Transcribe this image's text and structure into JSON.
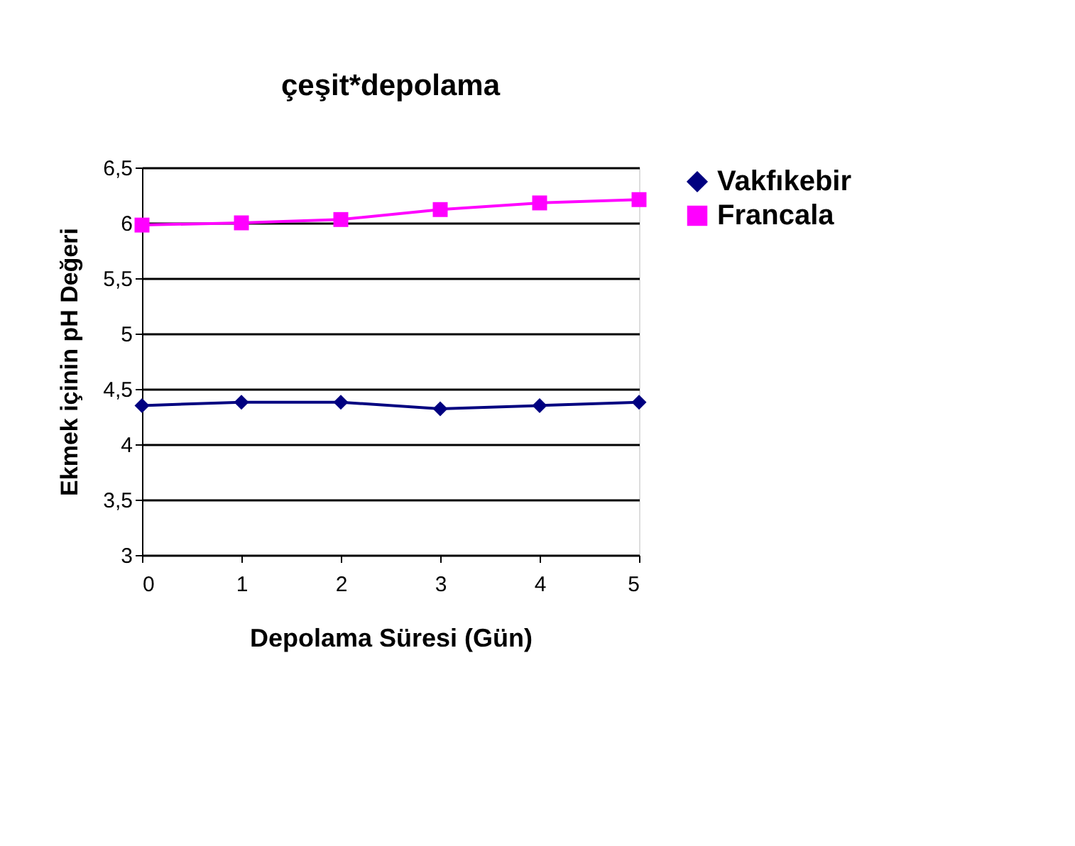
{
  "chart_data": {
    "type": "line",
    "title": "çeşit*depolama",
    "xlabel": "Depolama Süresi (Gün)",
    "ylabel": "Ekmek içinin  pH Değeri",
    "categories": [
      "0",
      "1",
      "2",
      "3",
      "4",
      "5"
    ],
    "series": [
      {
        "name": "Vakfıkebir",
        "color": "#000080",
        "marker": "diamond",
        "values": [
          4.35,
          4.38,
          4.38,
          4.32,
          4.35,
          4.38
        ]
      },
      {
        "name": "Francala",
        "color": "#ff00ff",
        "marker": "square",
        "values": [
          5.98,
          6.0,
          6.03,
          6.12,
          6.18,
          6.21
        ]
      }
    ],
    "ylim": [
      3,
      6.5
    ],
    "yticks": [
      3,
      {
        "value": 3.5,
        "label": "3,5"
      },
      4,
      {
        "value": 4.5,
        "label": "4,5"
      },
      5,
      {
        "value": 5.5,
        "label": "5,5"
      },
      6,
      {
        "value": 6.5,
        "label": "6,5"
      }
    ],
    "grid": "y",
    "legend": "right",
    "line_style": "solid"
  }
}
